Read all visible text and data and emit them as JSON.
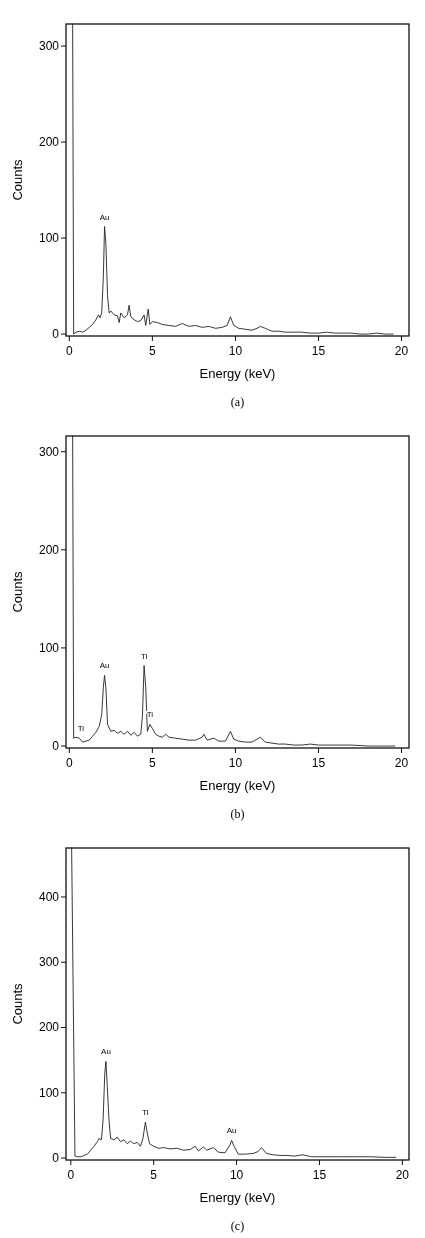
{
  "chart_data": [
    {
      "type": "line",
      "xlabel": "Energy (keV)",
      "ylabel": "Counts",
      "xlim": [
        -0.2,
        20.45
      ],
      "ylim": [
        -2,
        323
      ],
      "xticks": [
        0,
        5,
        10,
        15,
        20
      ],
      "yticks": [
        0,
        100,
        200,
        300
      ],
      "series": [
        {
          "color": "#222222",
          "x": [
            0.2,
            0.26,
            0.4,
            0.6,
            0.8,
            1.0,
            1.2,
            1.4,
            1.6,
            1.75,
            1.85,
            1.95,
            2.05,
            2.12,
            2.2,
            2.3,
            2.4,
            2.5,
            2.7,
            2.9,
            3.0,
            3.1,
            3.3,
            3.5,
            3.6,
            3.7,
            3.9,
            4.1,
            4.3,
            4.5,
            4.6,
            4.75,
            4.85,
            5.0,
            5.3,
            5.6,
            6.0,
            6.4,
            6.8,
            7.2,
            7.6,
            8.0,
            8.4,
            8.8,
            9.2,
            9.5,
            9.7,
            9.9,
            10.2,
            10.6,
            11.0,
            11.3,
            11.5,
            11.8,
            12.2,
            12.6,
            13,
            13.5,
            14,
            14.5,
            15,
            15.5,
            16,
            16.5,
            17,
            17.5,
            18,
            18.5,
            19,
            19.5
          ],
          "values": [
            323,
            0,
            2,
            3,
            2,
            4,
            7,
            10,
            15,
            20,
            17,
            22,
            60,
            112,
            95,
            40,
            22,
            24,
            20,
            19,
            12,
            22,
            17,
            20,
            30,
            18,
            15,
            13,
            14,
            20,
            9,
            26,
            10,
            13,
            12,
            10,
            9,
            8,
            11,
            8,
            9,
            7,
            8,
            6,
            7,
            9,
            18,
            9,
            6,
            5,
            4,
            6,
            8,
            6,
            3,
            3,
            2,
            2,
            2,
            1,
            1,
            2,
            1,
            1,
            1,
            0,
            0,
            1,
            0,
            0
          ]
        }
      ],
      "annotations": [
        {
          "text": "Au",
          "x": 2.12,
          "y": 112
        },
        "(a)"
      ]
    },
    {
      "type": "line",
      "xlabel": "Energy (keV)",
      "ylabel": "Counts",
      "xlim": [
        -0.2,
        20.45
      ],
      "ylim": [
        -2,
        316
      ],
      "xticks": [
        0,
        5,
        10,
        15,
        20
      ],
      "yticks": [
        0,
        100,
        200,
        300
      ],
      "series": [
        {
          "color": "#222222",
          "x": [
            0.2,
            0.26,
            0.4,
            0.6,
            0.8,
            1.0,
            1.2,
            1.4,
            1.6,
            1.8,
            1.95,
            2.05,
            2.12,
            2.2,
            2.3,
            2.5,
            2.7,
            2.9,
            3.1,
            3.3,
            3.5,
            3.7,
            3.9,
            4.1,
            4.3,
            4.4,
            4.5,
            4.6,
            4.7,
            4.85,
            5.0,
            5.2,
            5.4,
            5.6,
            5.8,
            6.0,
            6.4,
            6.8,
            7.2,
            7.6,
            8.0,
            8.1,
            8.3,
            8.7,
            9.0,
            9.4,
            9.7,
            9.9,
            10.2,
            10.6,
            11.0,
            11.5,
            11.8,
            12.2,
            12.6,
            13,
            13.5,
            14,
            14.5,
            15,
            16,
            17,
            18,
            19,
            19.6
          ],
          "values": [
            316,
            8,
            9,
            8,
            4,
            5,
            6,
            10,
            14,
            20,
            32,
            60,
            72,
            60,
            22,
            15,
            16,
            13,
            15,
            12,
            15,
            11,
            14,
            10,
            12,
            30,
            82,
            60,
            15,
            22,
            18,
            12,
            10,
            9,
            12,
            9,
            8,
            7,
            6,
            6,
            9,
            12,
            6,
            8,
            5,
            5,
            15,
            7,
            5,
            4,
            4,
            9,
            4,
            3,
            2,
            2,
            1,
            1,
            2,
            1,
            1,
            1,
            0,
            0,
            0
          ]
        }
      ],
      "annotations": [
        {
          "text": "Ti",
          "x": 0.7,
          "y": 8
        },
        {
          "text": "Au",
          "x": 2.12,
          "y": 72
        },
        {
          "text": "Ti",
          "x": 4.5,
          "y": 82
        },
        {
          "text": "Ti",
          "x": 4.85,
          "y": 22
        },
        "(b)"
      ]
    },
    {
      "type": "line",
      "xlabel": "Energy (keV)",
      "ylabel": "Counts",
      "xlim": [
        -0.29,
        20.4
      ],
      "ylim": [
        -3,
        475
      ],
      "xticks": [
        0,
        5,
        10,
        15,
        20
      ],
      "yticks": [
        0,
        100,
        200,
        300,
        400
      ],
      "series": [
        {
          "color": "#222222",
          "x": [
            0.05,
            0.25,
            0.4,
            0.6,
            0.8,
            1.0,
            1.2,
            1.4,
            1.6,
            1.7,
            1.85,
            1.95,
            2.05,
            2.12,
            2.2,
            2.3,
            2.4,
            2.6,
            2.8,
            3.0,
            3.2,
            3.4,
            3.6,
            3.8,
            4.0,
            4.2,
            4.35,
            4.5,
            4.6,
            4.75,
            5.0,
            5.3,
            5.6,
            6.0,
            6.4,
            6.8,
            7.2,
            7.5,
            7.7,
            8.0,
            8.2,
            8.6,
            8.9,
            9.3,
            9.6,
            9.7,
            9.85,
            10.1,
            10.5,
            11.0,
            11.3,
            11.5,
            11.8,
            12.2,
            12.6,
            13,
            13.5,
            14,
            14.5,
            15,
            16,
            17,
            18,
            19,
            19.6
          ],
          "values": [
            475,
            3,
            2,
            2,
            4,
            6,
            12,
            18,
            25,
            30,
            28,
            60,
            130,
            148,
            110,
            60,
            30,
            28,
            32,
            25,
            28,
            22,
            26,
            22,
            24,
            18,
            30,
            55,
            40,
            22,
            18,
            15,
            16,
            14,
            15,
            12,
            13,
            18,
            11,
            17,
            12,
            16,
            9,
            8,
            20,
            27,
            18,
            6,
            6,
            7,
            10,
            16,
            7,
            5,
            4,
            4,
            3,
            5,
            2,
            2,
            2,
            2,
            2,
            1,
            1
          ]
        }
      ],
      "annotations": [
        {
          "text": "Au",
          "x": 2.12,
          "y": 148
        },
        {
          "text": "Ti",
          "x": 4.5,
          "y": 55
        },
        {
          "text": "Au",
          "x": 9.7,
          "y": 27
        },
        "(c)"
      ]
    }
  ]
}
